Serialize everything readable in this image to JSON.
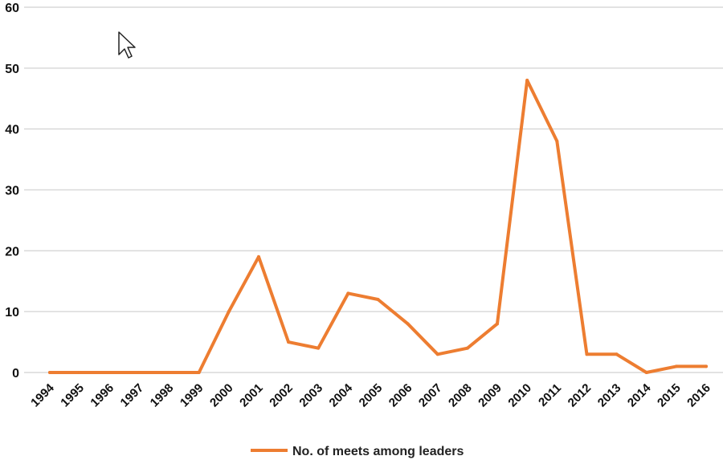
{
  "chart_data": {
    "type": "line",
    "title": "",
    "xlabel": "",
    "ylabel": "",
    "ylim": [
      0,
      60
    ],
    "yticks": [
      0,
      10,
      20,
      30,
      40,
      50,
      60
    ],
    "grid": true,
    "legend_position": "bottom",
    "categories": [
      "1994",
      "1995",
      "1996",
      "1997",
      "1998",
      "1999",
      "2000",
      "2001",
      "2002",
      "2003",
      "2004",
      "2005",
      "2006",
      "2007",
      "2008",
      "2009",
      "2010",
      "2011",
      "2012",
      "2013",
      "2014",
      "2015",
      "2016"
    ],
    "series": [
      {
        "name": "No. of meets among leaders",
        "color": "#ED7D31",
        "values": [
          0,
          0,
          0,
          0,
          0,
          0,
          10,
          19,
          5,
          4,
          13,
          12,
          8,
          3,
          4,
          8,
          48,
          38,
          3,
          3,
          0,
          1,
          1
        ]
      }
    ]
  },
  "cursor": {
    "icon": "mouse-pointer-icon"
  }
}
